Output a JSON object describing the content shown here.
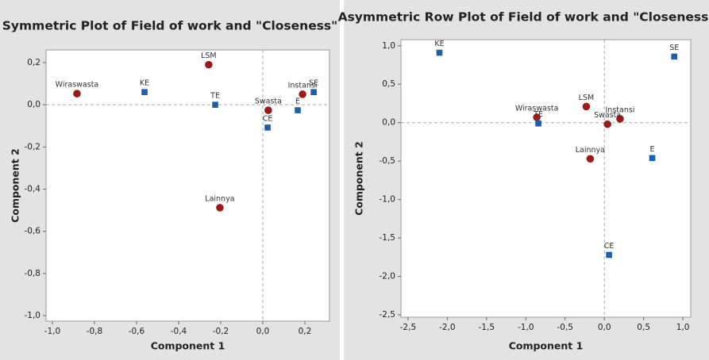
{
  "chart_data": [
    {
      "type": "scatter",
      "title": "Symmetric Plot of Field of work and \"Closeness\"",
      "x_label": "Component 1",
      "y_label": "Component 2",
      "xlim": [
        -1.03,
        0.317
      ],
      "ylim": [
        -1.026,
        0.26
      ],
      "xticks": [
        {
          "value": -1.0,
          "label": "-1,0"
        },
        {
          "value": -0.8,
          "label": "-0,8"
        },
        {
          "value": -0.6,
          "label": "-0,6"
        },
        {
          "value": -0.4,
          "label": "-0,4"
        },
        {
          "value": -0.2,
          "label": "-0,2"
        },
        {
          "value": 0,
          "label": "0,0"
        },
        {
          "value": 0.2,
          "label": "0,2"
        }
      ],
      "yticks": [
        {
          "value": -1.0,
          "label": "-1,0"
        },
        {
          "value": -0.8,
          "label": "-0,8"
        },
        {
          "value": -0.6,
          "label": "-0,6"
        },
        {
          "value": -0.4,
          "label": "-0,4"
        },
        {
          "value": -0.2,
          "label": "-0,2"
        },
        {
          "value": 0,
          "label": "0,0"
        },
        {
          "value": 0.2,
          "label": "0,2"
        }
      ],
      "zero_lines": true,
      "series": [
        {
          "color": "#9b1b1b",
          "marker": "circle",
          "labels": [
            "Wiraswasta",
            "LSM",
            "Swasta",
            "Instansi",
            "Lainnya"
          ],
          "x": [
            -0.883,
            -0.257,
            0.026,
            0.189,
            -0.204
          ],
          "values": [
            0.053,
            0.19,
            -0.026,
            0.05,
            -0.488
          ]
        },
        {
          "color": "#1f5ea8",
          "marker": "square",
          "labels": [
            "KE",
            "TE",
            "CE",
            "E",
            "SE"
          ],
          "x": [
            -0.562,
            -0.226,
            0.023,
            0.166,
            0.242
          ],
          "values": [
            0.06,
            0.0,
            -0.108,
            -0.026,
            0.06
          ]
        }
      ]
    },
    {
      "type": "scatter",
      "title": "Asymmetric Row Plot of Field of work and \"Closeness\"",
      "x_label": "Component 1",
      "y_label": "Component 2",
      "xlim": [
        -2.59,
        1.1
      ],
      "ylim": [
        -2.53,
        1.08
      ],
      "xticks": [
        {
          "value": -2.5,
          "label": "-2,5"
        },
        {
          "value": -2.0,
          "label": "-2,0"
        },
        {
          "value": -1.5,
          "label": "-1,5"
        },
        {
          "value": -1.0,
          "label": "-1,0"
        },
        {
          "value": -0.5,
          "label": "-0,5"
        },
        {
          "value": 0,
          "label": "0,0"
        },
        {
          "value": 0.5,
          "label": "0,5"
        },
        {
          "value": 1.0,
          "label": "1,0"
        }
      ],
      "yticks": [
        {
          "value": 1.0,
          "label": "1,0"
        },
        {
          "value": 0.5,
          "label": "0,5"
        },
        {
          "value": 0,
          "label": "0,0"
        },
        {
          "value": -0.5,
          "label": "-0,5"
        },
        {
          "value": -1.0,
          "label": "-1,0"
        },
        {
          "value": -1.5,
          "label": "-1,5"
        },
        {
          "value": -2.0,
          "label": "-2,0"
        },
        {
          "value": -2.5,
          "label": "-2,5"
        }
      ],
      "zero_lines": true,
      "series": [
        {
          "color": "#9b1b1b",
          "marker": "circle",
          "labels": [
            "Wiraswasta",
            "LSM",
            "Instansi",
            "Swasta",
            "Lainnya"
          ],
          "x": [
            -0.86,
            -0.23,
            0.2,
            0.04,
            -0.18
          ],
          "values": [
            0.07,
            0.21,
            0.05,
            -0.02,
            -0.47
          ]
        },
        {
          "color": "#1f5ea8",
          "marker": "square",
          "labels": [
            "KE",
            "SE",
            "TE",
            "E",
            "CE"
          ],
          "x": [
            -2.1,
            0.89,
            -0.84,
            0.61,
            0.06
          ],
          "values": [
            0.91,
            0.86,
            -0.01,
            -0.46,
            -1.72
          ]
        }
      ]
    }
  ]
}
